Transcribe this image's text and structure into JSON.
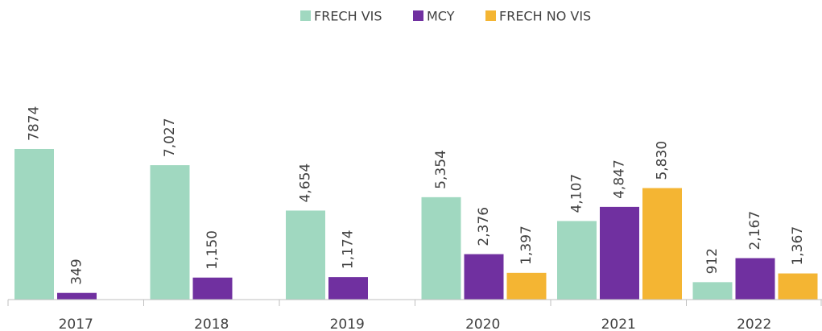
{
  "chart_data": {
    "type": "bar",
    "categories": [
      "2017",
      "2018",
      "2019",
      "2020",
      "2021",
      "2022"
    ],
    "series": [
      {
        "name": "FRECH VIS",
        "color": "#a0d8c0",
        "values": [
          7874,
          7027,
          4654,
          5354,
          4107,
          912
        ],
        "value_labels": [
          "7874",
          "7,027",
          "4,654",
          "5,354",
          "4,107",
          "912"
        ]
      },
      {
        "name": "MCY",
        "color": "#7030a0",
        "values": [
          349,
          1150,
          1174,
          2376,
          4847,
          2167
        ],
        "value_labels": [
          "349",
          "1,150",
          "1,174",
          "2,376",
          "4,847",
          "2,167"
        ]
      },
      {
        "name": "FRECH NO VIS",
        "color": "#f4b533",
        "values": [
          null,
          null,
          null,
          1397,
          5830,
          1367
        ],
        "value_labels": [
          null,
          null,
          null,
          "1,397",
          "5,830",
          "1,367"
        ]
      }
    ],
    "ylim": [
      0,
      12000
    ],
    "legend": "top"
  }
}
